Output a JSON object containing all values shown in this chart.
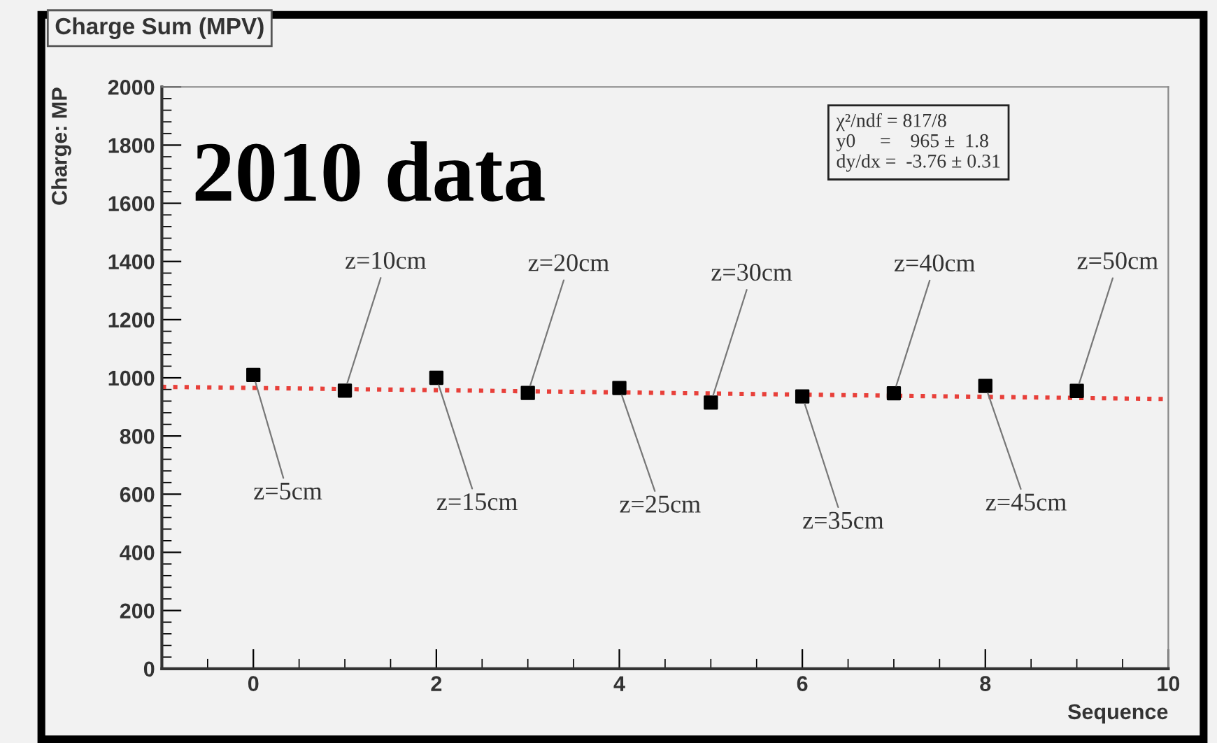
{
  "chart_data": {
    "type": "scatter",
    "title": "Charge Sum (MPV)",
    "xlabel": "Sequence",
    "ylabel": "Charge: MP",
    "x": [
      0,
      1,
      2,
      3,
      4,
      5,
      6,
      7,
      8,
      9
    ],
    "series": [
      {
        "color": "#000000",
        "marker": "square",
        "values": [
          1010,
          956,
          1000,
          948,
          965,
          915,
          936,
          947,
          972,
          955
        ]
      },
      {
        "type": "line",
        "color": "#e8403a",
        "x": [
          -1,
          10
        ],
        "values": [
          969,
          927
        ]
      }
    ],
    "line_style": "dotted",
    "xlim": [
      -1,
      10
    ],
    "xticks": [
      0,
      2,
      4,
      6,
      8,
      10
    ],
    "ylim": [
      0,
      2000
    ],
    "yticks": [
      0,
      200,
      400,
      600,
      800,
      1000,
      1200,
      1400,
      1600,
      1800,
      2000
    ],
    "grid": false,
    "annotations": [
      "2010 data",
      "χ²/ndf = 817/8",
      "y0     =    965 ±  1.8",
      "dy/dx =  -3.76 ± 0.31",
      {
        "text": "z=5cm",
        "x": 0,
        "y": 1010
      },
      {
        "text": "z=10cm",
        "x": 1,
        "y": 956
      },
      {
        "text": "z=15cm",
        "x": 2,
        "y": 1000
      },
      {
        "text": "z=20cm",
        "x": 3,
        "y": 948
      },
      {
        "text": "z=25cm",
        "x": 4,
        "y": 965
      },
      {
        "text": "z=30cm",
        "x": 5,
        "y": 915
      },
      {
        "text": "z=35cm",
        "x": 6,
        "y": 936
      },
      {
        "text": "z=40cm",
        "x": 7,
        "y": 947
      },
      {
        "text": "z=45cm",
        "x": 8,
        "y": 972
      },
      {
        "text": "z=50cm",
        "x": 9,
        "y": 955
      }
    ]
  }
}
